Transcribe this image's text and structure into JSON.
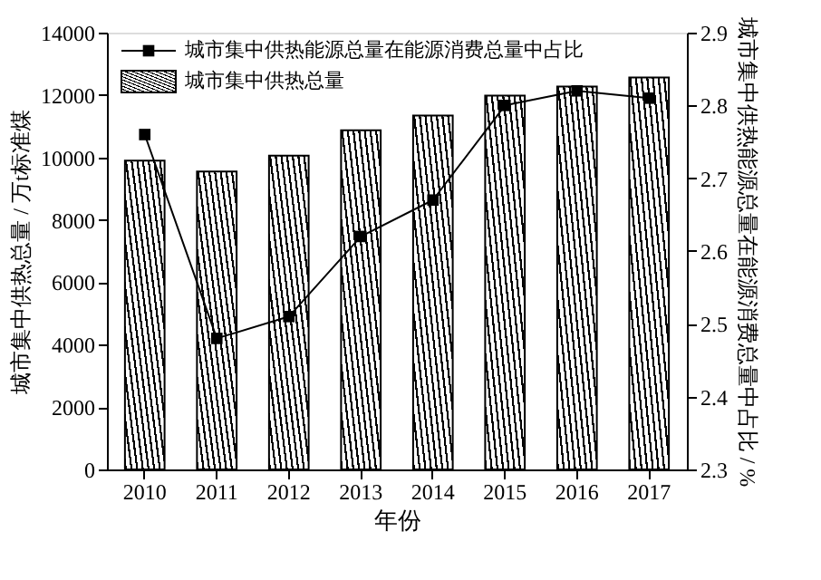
{
  "chart_data": {
    "type": "bar",
    "xlabel": "年份",
    "ylabel": "城市集中供热总量 / 万t标准煤",
    "y2label": "城市集中供热能源总量在能源消费总量中占比 / %",
    "categories": [
      "2010",
      "2011",
      "2012",
      "2013",
      "2014",
      "2015",
      "2016",
      "2017"
    ],
    "series": [
      {
        "name": "城市集中供热能源总量在能源消费总量中占比",
        "type": "line",
        "axis": "y2",
        "color": "#000000",
        "marker": "square",
        "values": [
          2.76,
          2.48,
          2.51,
          2.62,
          2.67,
          2.8,
          2.82,
          2.81
        ]
      },
      {
        "name": "城市集中供热总量",
        "color": "#000000",
        "values": [
          9900,
          9550,
          10060,
          10870,
          11340,
          11980,
          12270,
          12560
        ]
      }
    ],
    "ylim": [
      0,
      14000
    ],
    "yticks": [
      0,
      2000,
      4000,
      6000,
      8000,
      10000,
      12000,
      14000
    ],
    "y2lim": [
      2.3,
      2.9
    ],
    "y2ticks": [
      2.3,
      2.4,
      2.5,
      2.6,
      2.7,
      2.8,
      2.9
    ],
    "legend": "top left",
    "grid": false
  }
}
